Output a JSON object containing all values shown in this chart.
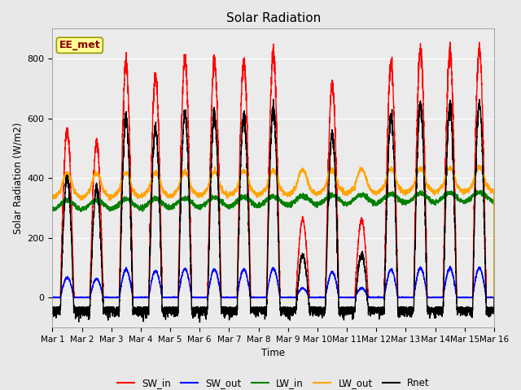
{
  "title": "Solar Radiation",
  "ylabel": "Solar Radiation (W/m2)",
  "xlabel": "Time",
  "ylim": [
    -100,
    900
  ],
  "xlim": [
    0,
    15
  ],
  "x_tick_labels": [
    "Mar 1",
    "Mar 2",
    "Mar 3",
    "Mar 4",
    "Mar 5",
    "Mar 6",
    "Mar 7",
    "Mar 8",
    "Mar 9",
    "Mar 10",
    "Mar 11",
    "Mar 12",
    "Mar 13",
    "Mar 14",
    "Mar 15",
    "Mar 16"
  ],
  "annotation_text": "EE_met",
  "annotation_color": "#8B0000",
  "annotation_bg": "#FFFF99",
  "series": {
    "SW_in": {
      "color": "red",
      "lw": 1.0
    },
    "SW_out": {
      "color": "blue",
      "lw": 1.0
    },
    "LW_in": {
      "color": "green",
      "lw": 1.0
    },
    "LW_out": {
      "color": "orange",
      "lw": 1.0
    },
    "Rnet": {
      "color": "black",
      "lw": 1.0
    }
  },
  "bg_color": "#E8E8E8",
  "plot_bg": "#EBEBEB",
  "grid_color": "#FFFFFF",
  "legend_colors": [
    "red",
    "blue",
    "green",
    "orange",
    "black"
  ],
  "legend_labels": [
    "SW_in",
    "SW_out",
    "LW_in",
    "LW_out",
    "Rnet"
  ],
  "n_days": 15,
  "pts_per_day": 288,
  "day_peaks_SWin": [
    560,
    520,
    780,
    745,
    800,
    790,
    790,
    810,
    260,
    710,
    260,
    780,
    825,
    820,
    830
  ],
  "day_cloudy": [
    false,
    false,
    false,
    false,
    false,
    false,
    false,
    false,
    true,
    false,
    true,
    false,
    false,
    false,
    false
  ]
}
